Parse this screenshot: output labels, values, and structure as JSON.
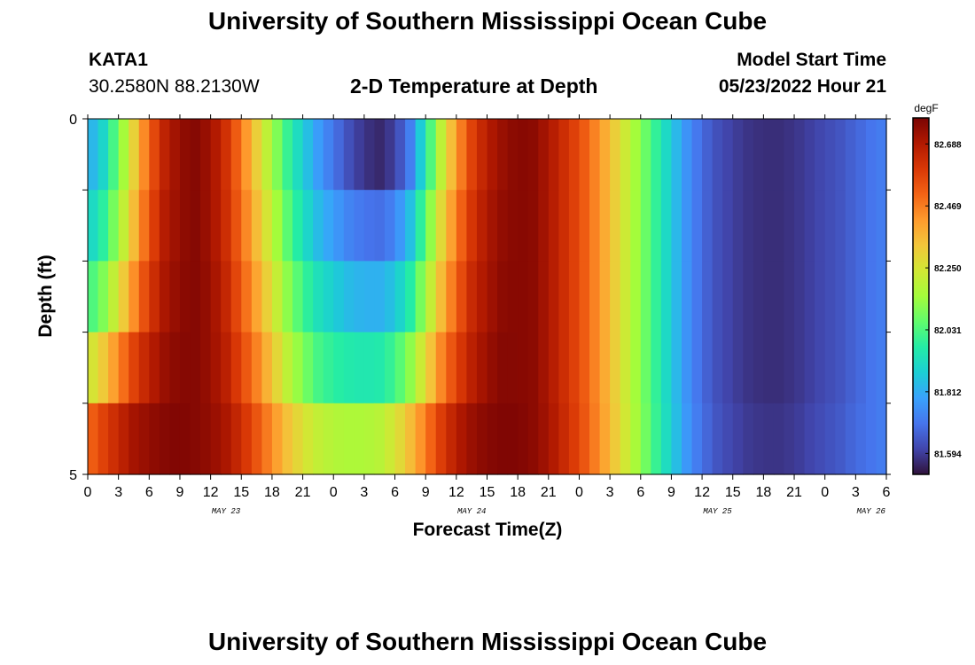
{
  "header": {
    "title": "University of Southern Mississippi Ocean Cube",
    "station_id": "KATA1",
    "coordinates": "30.2580N  88.2130W",
    "subtitle": "2-D Temperature at Depth",
    "model_start_label": "Model Start Time",
    "model_start_value": "05/23/2022 Hour 21"
  },
  "footer": {
    "title": "University of Southern Mississippi Ocean Cube"
  },
  "chart_data": {
    "type": "heatmap",
    "xlabel": "Forecast Time(Z)",
    "ylabel": "Depth (ft)",
    "x_tick_labels": [
      "0",
      "3",
      "6",
      "9",
      "12",
      "15",
      "18",
      "21",
      "0",
      "3",
      "6",
      "9",
      "12",
      "15",
      "18",
      "21",
      "0",
      "3",
      "6",
      "9",
      "12",
      "15",
      "18",
      "21",
      "0",
      "3",
      "6"
    ],
    "date_labels": [
      {
        "label": "MAY 23",
        "tick_index": 4.5
      },
      {
        "label": "MAY 24",
        "tick_index": 12.5
      },
      {
        "label": "MAY 25",
        "tick_index": 20.5
      },
      {
        "label": "MAY 26",
        "tick_index": 25.5
      }
    ],
    "y_tick_labels": [
      "0",
      "5"
    ],
    "ylim": [
      0,
      5
    ],
    "y_inverted": true,
    "colorbar": {
      "unit": "degF",
      "tick_labels": [
        "82.688",
        "82.469",
        "82.250",
        "82.031",
        "81.812",
        "81.594"
      ],
      "range": [
        81.52,
        82.78
      ],
      "colormap": [
        "#30123b",
        "#4145ab",
        "#4675ed",
        "#39a2fc",
        "#1bcfd4",
        "#24eca6",
        "#61fc6c",
        "#a4fc3b",
        "#d1e834",
        "#f3c63a",
        "#fe9b2d",
        "#f36315",
        "#d93806",
        "#b11901",
        "#7a0403"
      ]
    },
    "hour_step": 1,
    "rows": 5,
    "day_temps": [
      [
        81.8,
        81.9,
        82.08,
        82.3,
        82.52,
        82.66,
        82.74,
        82.76,
        82.72,
        82.62,
        82.48,
        82.31,
        82.15,
        82.0,
        81.88,
        81.78,
        81.7,
        81.63,
        81.58,
        81.56,
        81.6,
        81.72,
        81.95,
        82.2,
        82.42,
        82.58,
        82.68,
        82.73,
        82.76,
        82.75,
        82.7,
        82.63,
        82.56,
        82.46,
        82.35,
        82.23,
        82.11,
        81.99,
        81.87,
        81.76,
        81.68,
        81.63,
        81.6,
        81.58,
        81.57,
        81.57,
        81.58,
        81.6,
        81.62,
        81.64,
        81.67,
        81.7,
        81.72
      ],
      [
        81.88,
        81.98,
        82.14,
        82.35,
        82.55,
        82.68,
        82.74,
        82.76,
        82.72,
        82.63,
        82.5,
        82.35,
        82.2,
        82.05,
        81.93,
        81.84,
        81.78,
        81.73,
        81.7,
        81.69,
        81.73,
        81.85,
        82.05,
        82.28,
        82.47,
        82.61,
        82.7,
        82.74,
        82.76,
        82.75,
        82.7,
        82.63,
        82.56,
        82.46,
        82.35,
        82.23,
        82.11,
        81.99,
        81.87,
        81.76,
        81.68,
        81.63,
        81.6,
        81.58,
        81.57,
        81.57,
        81.58,
        81.6,
        81.62,
        81.64,
        81.67,
        81.7,
        81.72
      ],
      [
        82.0,
        82.1,
        82.26,
        82.44,
        82.6,
        82.7,
        82.75,
        82.76,
        82.73,
        82.65,
        82.53,
        82.4,
        82.26,
        82.12,
        82.01,
        81.93,
        81.88,
        81.84,
        81.82,
        81.82,
        81.86,
        81.97,
        82.15,
        82.35,
        82.52,
        82.64,
        82.71,
        82.75,
        82.76,
        82.75,
        82.7,
        82.63,
        82.56,
        82.46,
        82.35,
        82.23,
        82.11,
        81.99,
        81.87,
        81.76,
        81.68,
        81.63,
        81.6,
        81.58,
        81.57,
        81.57,
        81.58,
        81.6,
        81.62,
        81.64,
        81.67,
        81.7,
        81.72
      ],
      [
        82.22,
        82.32,
        82.45,
        82.58,
        82.67,
        82.73,
        82.76,
        82.76,
        82.73,
        82.67,
        82.57,
        82.46,
        82.33,
        82.2,
        82.1,
        82.02,
        81.98,
        81.96,
        81.95,
        81.96,
        82.01,
        82.12,
        82.28,
        82.45,
        82.58,
        82.67,
        82.73,
        82.76,
        82.76,
        82.75,
        82.7,
        82.63,
        82.56,
        82.46,
        82.35,
        82.23,
        82.11,
        81.99,
        81.87,
        81.76,
        81.68,
        81.63,
        81.6,
        81.58,
        81.57,
        81.57,
        81.58,
        81.6,
        81.62,
        81.64,
        81.67,
        81.7,
        81.72
      ],
      [
        82.5,
        82.58,
        82.65,
        82.71,
        82.74,
        82.76,
        82.77,
        82.76,
        82.74,
        82.7,
        82.63,
        82.54,
        82.44,
        82.34,
        82.26,
        82.21,
        82.18,
        82.17,
        82.17,
        82.19,
        82.25,
        82.35,
        82.47,
        82.59,
        82.68,
        82.73,
        82.76,
        82.77,
        82.77,
        82.75,
        82.71,
        82.64,
        82.57,
        82.47,
        82.36,
        82.24,
        82.12,
        82.0,
        81.88,
        81.77,
        81.69,
        81.64,
        81.61,
        81.59,
        81.58,
        81.58,
        81.59,
        81.61,
        81.63,
        81.65,
        81.68,
        81.7,
        81.72
      ]
    ]
  }
}
